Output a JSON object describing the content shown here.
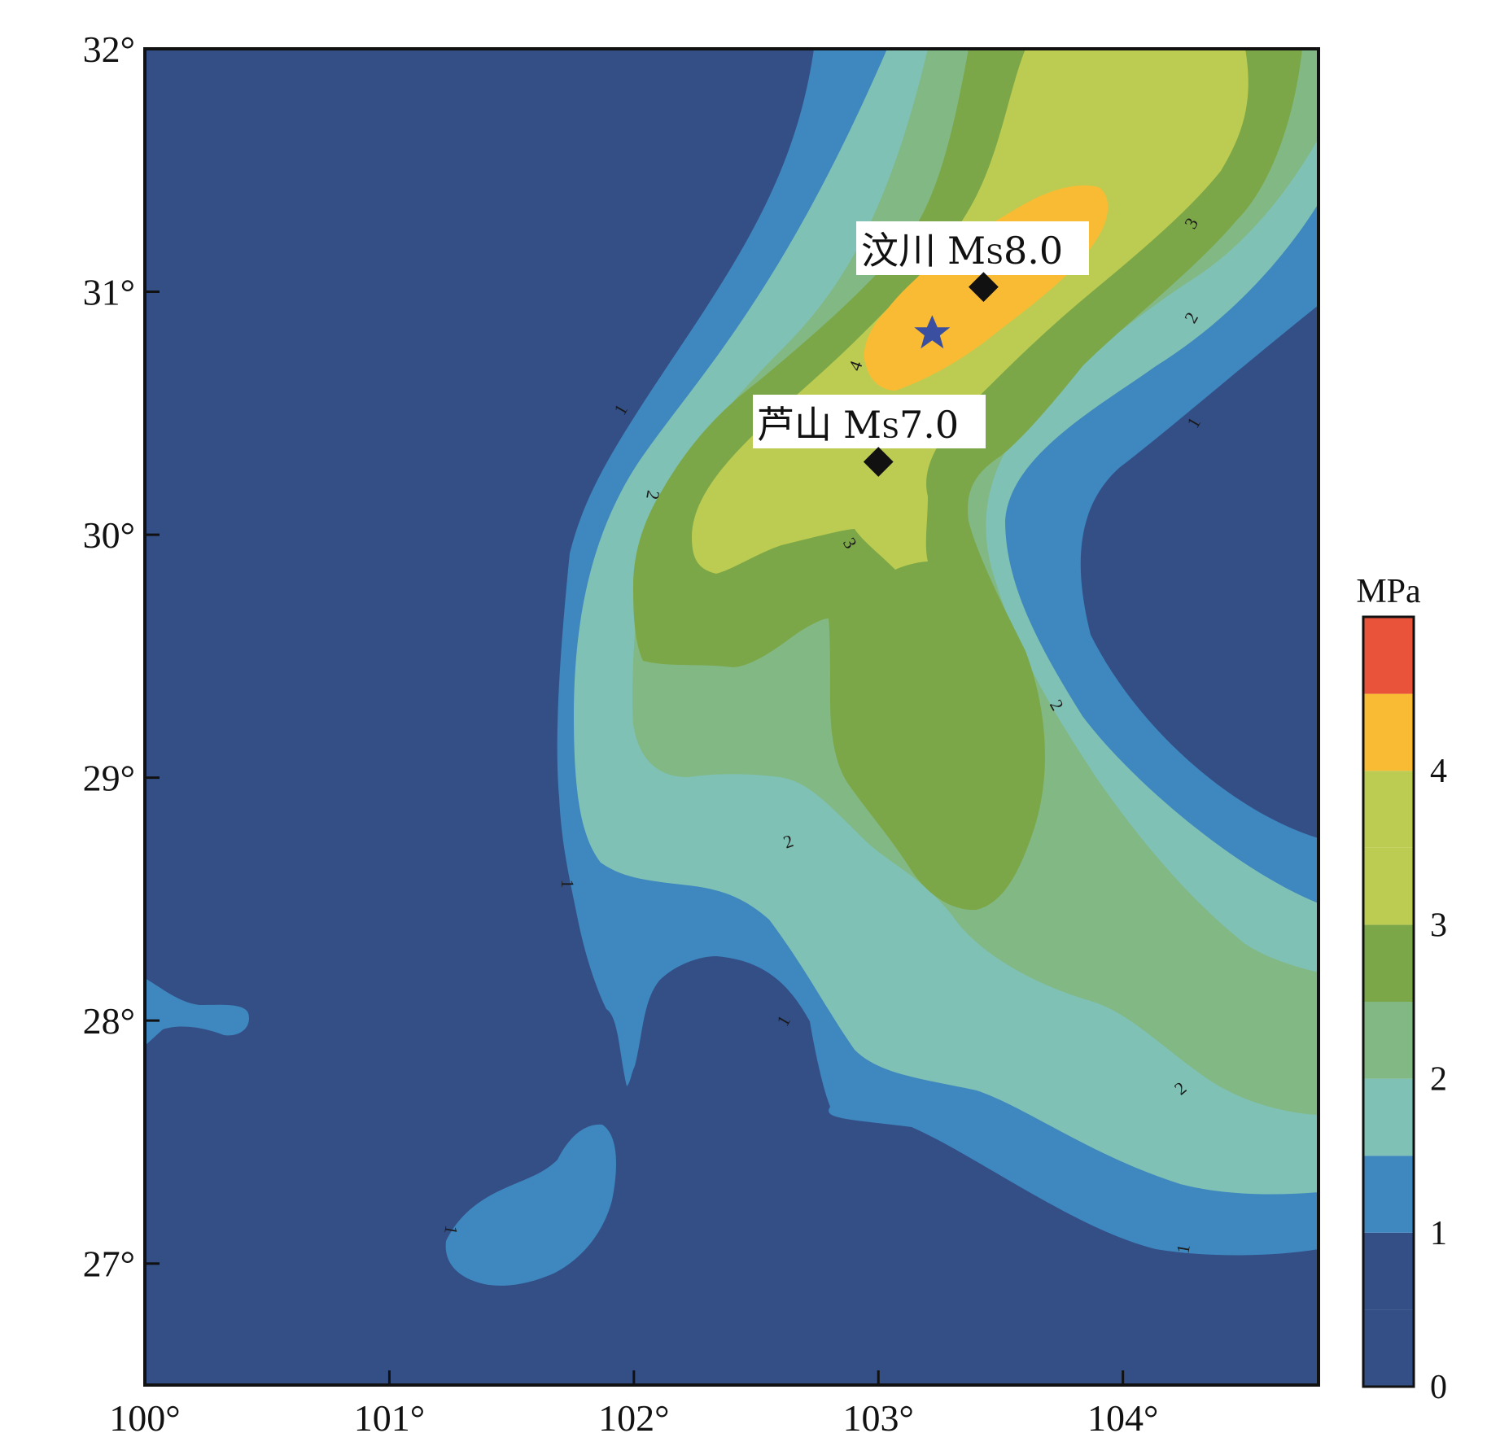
{
  "map": {
    "x_ticks": [
      "100°",
      "101°",
      "102°",
      "103°",
      "104°"
    ],
    "y_ticks": [
      "32°",
      "31°",
      "30°",
      "29°",
      "28°",
      "27°"
    ],
    "contour_labels": [
      "1",
      "1",
      "1",
      "1",
      "1",
      "1",
      "2",
      "2",
      "2",
      "2",
      "2",
      "3",
      "3",
      "4"
    ],
    "earthquakes": [
      {
        "name": "汶川",
        "mag_prefix": "M",
        "mag_sub": "S",
        "mag_value": "8.0",
        "lon": 103.43,
        "lat": 31.02
      },
      {
        "name": "芦山",
        "mag_prefix": "M",
        "mag_sub": "S",
        "mag_value": "7.0",
        "lon": 103.0,
        "lat": 30.3
      }
    ],
    "star": {
      "lon": 103.22,
      "lat": 30.83,
      "color": "#3a4fa0"
    },
    "x_range": [
      100,
      104.8
    ],
    "y_range": [
      26.5,
      32
    ]
  },
  "colorbar": {
    "unit": "MPa",
    "tick_labels": [
      "0",
      "1",
      "2",
      "3",
      "4"
    ],
    "range": [
      0,
      5
    ],
    "bins": [
      {
        "from": 0,
        "to": 0.5,
        "color": "#334f86"
      },
      {
        "from": 0.5,
        "to": 1,
        "color": "#334f86"
      },
      {
        "from": 1,
        "to": 1.5,
        "color": "#3f87bf"
      },
      {
        "from": 1.5,
        "to": 2,
        "color": "#7fc1b4"
      },
      {
        "from": 2,
        "to": 2.5,
        "color": "#82b884"
      },
      {
        "from": 2.5,
        "to": 3,
        "color": "#7ca748"
      },
      {
        "from": 3,
        "to": 3.5,
        "color": "#bccc52"
      },
      {
        "from": 3.5,
        "to": 4,
        "color": "#bccc52"
      },
      {
        "from": 4,
        "to": 4.5,
        "color": "#f8bb33"
      },
      {
        "from": 4.5,
        "to": 5,
        "color": "#e8533a"
      }
    ]
  }
}
